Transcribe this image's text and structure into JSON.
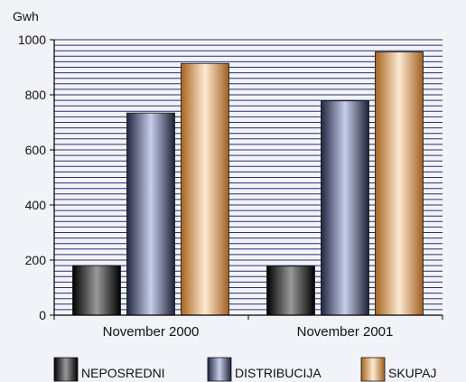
{
  "chart_data": {
    "type": "bar",
    "unit_label": "Gwh",
    "categories": [
      "November 2000",
      "November 2001"
    ],
    "series": [
      {
        "name": "NEPOSREDNI",
        "values": [
          180,
          178
        ]
      },
      {
        "name": "DISTRIBUCIJA",
        "values": [
          734,
          778
        ]
      },
      {
        "name": "SKUPAJ",
        "values": [
          914,
          956
        ]
      }
    ],
    "ylim": [
      0,
      1000
    ],
    "yticks": [
      0,
      200,
      400,
      600,
      800,
      1000
    ],
    "grid": true,
    "legend_position": "bottom",
    "colors": {
      "neposredni": [
        "#2a2a2a",
        "#8c8c8c",
        "#000000"
      ],
      "distribucija": [
        "#2e3450",
        "#c3c9e6",
        "#20253a"
      ],
      "skupaj": [
        "#b06d2c",
        "#fbe7cc",
        "#9a5a22"
      ],
      "gridline": "#28306e"
    }
  }
}
